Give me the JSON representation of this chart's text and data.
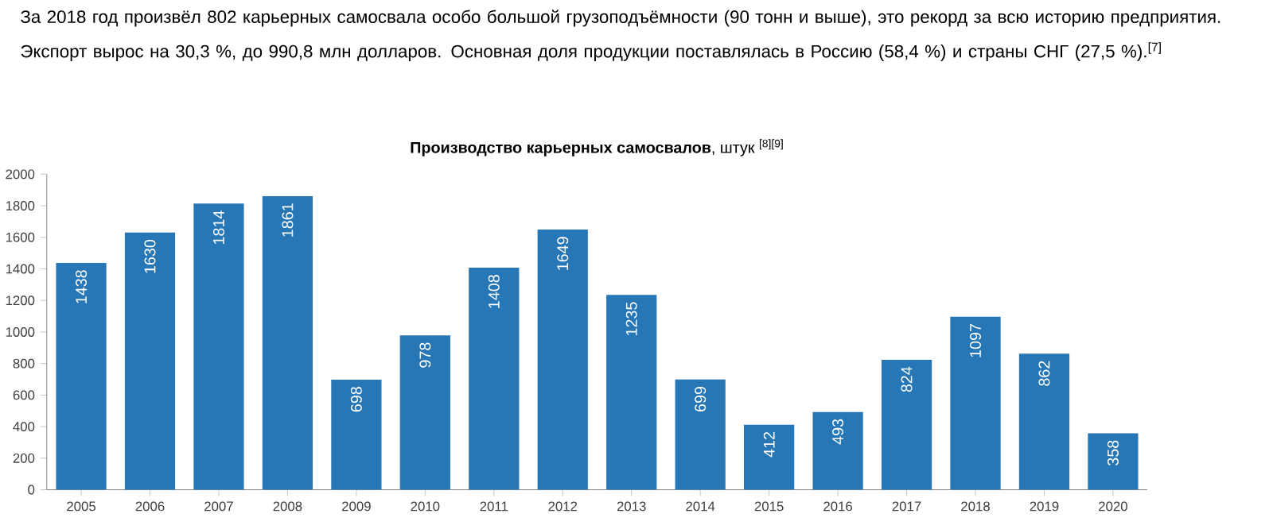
{
  "chart_data": {
    "type": "bar",
    "title": "**Производство карьерных самосвалов**, штук $^{[8][9]}$",
    "annotations": [
      "За 2018 год произвёл 802 карьерных самосвала особо большой грузоподъёмности (90 тонн и выше), это рекорд за всю историю предприятия. Экспорт вырос на 30,3 %, до 990,8 млн долларов. Основная доля продукции поставлялась в Россию (58,4 %) и страны СНГ (27,5 %).$^{[7]}$"
    ],
    "categories": [
      "2005",
      "2006",
      "2007",
      "2008",
      "2009",
      "2010",
      "2011",
      "2012",
      "2013",
      "2014",
      "2015",
      "2016",
      "2017",
      "2018",
      "2019",
      "2020"
    ],
    "values": [
      1438,
      1630,
      1814,
      1861,
      698,
      978,
      1408,
      1649,
      1235,
      699,
      412,
      493,
      824,
      1097,
      862,
      358
    ],
    "color": "#2776b5",
    "data_labels": true,
    "ylim": [
      0,
      2000
    ],
    "yticks": [
      0,
      200,
      400,
      600,
      800,
      1000,
      1200,
      1400,
      1600,
      1800,
      2000
    ],
    "grid": false
  }
}
